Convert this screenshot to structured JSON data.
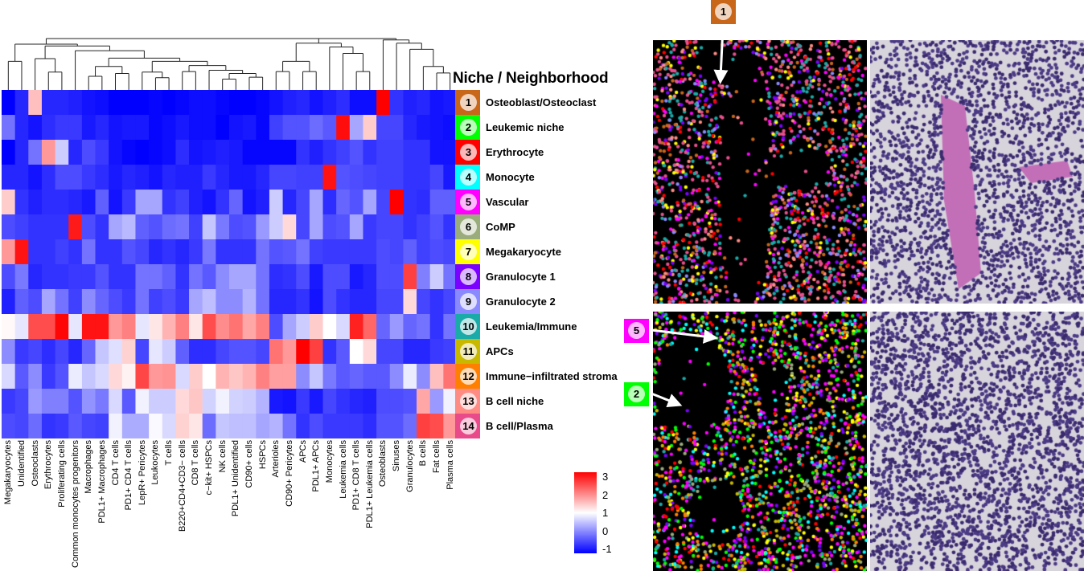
{
  "legend_title": "Niche / Neighborhood",
  "niches": [
    {
      "num": "1",
      "label": "Osteoblast/Osteoclast",
      "color": "#c8661a"
    },
    {
      "num": "2",
      "label": "Leukemic niche",
      "color": "#00ff00"
    },
    {
      "num": "3",
      "label": "Erythrocyte",
      "color": "#ff0000"
    },
    {
      "num": "4",
      "label": "Monocyte",
      "color": "#00ffff"
    },
    {
      "num": "5",
      "label": "Vascular",
      "color": "#ff00ff"
    },
    {
      "num": "6",
      "label": "CoMP",
      "color": "#9aab7c"
    },
    {
      "num": "7",
      "label": "Megakaryocyte",
      "color": "#ffff00"
    },
    {
      "num": "8",
      "label": "Granulocyte 1",
      "color": "#7a00ff"
    },
    {
      "num": "9",
      "label": "Granulocyte 2",
      "color": "#8a8aff"
    },
    {
      "num": "10",
      "label": "Leukemia/Immune",
      "color": "#1aaaa8"
    },
    {
      "num": "11",
      "label": "APCs",
      "color": "#c8b800"
    },
    {
      "num": "12",
      "label": "Immune−infiltrated stroma",
      "color": "#ff8000"
    },
    {
      "num": "13",
      "label": "B cell niche",
      "color": "#ff8c84"
    },
    {
      "num": "14",
      "label": "B cell/Plasma",
      "color": "#e84a8a"
    }
  ],
  "callouts": [
    {
      "num": "1",
      "color": "#c8661a"
    },
    {
      "num": "5",
      "color": "#ff00ff"
    },
    {
      "num": "2",
      "color": "#00ff00"
    }
  ],
  "chart_data": {
    "type": "heatmap",
    "x_categories": [
      "Megakaryocytes",
      "Unidentified",
      "Osteoclasts",
      "Erythrocytes",
      "Proliferating cells",
      "Common monocytes progenitors",
      "Macrophages",
      "PDL1+ Macrophages",
      "CD4 T cells",
      "PD1+ CD4 T cells",
      "LepR+ Pericytes",
      "Leukocytes",
      "T cells",
      "B220+CD4+CD3− cells",
      "CD8 T cells",
      "c−kit+ HSPCs",
      "NK cells",
      "PDL1+ Unidentified",
      "CD90+ cells",
      "HSPCs",
      "Arterioles",
      "CD90+ Pericytes",
      "APCs",
      "PDL1+ APCs",
      "Monocytes",
      "Leukemia cells",
      "PD1+ CD8 T cells",
      "PDL1+ Leukemia cells",
      "Osteoblasts",
      "Sinuses",
      "Granulocytes",
      "B cells",
      "Fat cells",
      "Plasma cells"
    ],
    "y_categories": [
      "Osteoblast/Osteoclast",
      "Leukemic niche",
      "Erythrocyte",
      "Monocyte",
      "Vascular",
      "CoMP",
      "Megakaryocyte",
      "Granulocyte 1",
      "Granulocyte 2",
      "Leukemia/Immune",
      "APCs",
      "Immune−infiltrated stroma",
      "B cell niche",
      "B cell/Plasma"
    ],
    "values": [
      [
        -1,
        -0.7,
        1.5,
        -0.7,
        -0.7,
        -0.75,
        -0.85,
        -0.9,
        -1,
        -1,
        -1,
        -0.95,
        -1,
        -0.95,
        -0.9,
        -0.9,
        -0.95,
        -1,
        -1,
        -0.95,
        -0.85,
        -0.75,
        -0.7,
        -0.85,
        -0.75,
        -0.65,
        -0.9,
        -0.9,
        3,
        -0.6,
        -0.75,
        -0.7,
        -0.85,
        -0.8
      ],
      [
        -0.1,
        -0.7,
        -0.85,
        -0.65,
        -0.55,
        -0.55,
        -0.8,
        -0.7,
        -0.85,
        -0.8,
        -0.8,
        -0.95,
        -0.9,
        -0.8,
        -0.9,
        -0.9,
        -1,
        -0.85,
        -0.8,
        -0.95,
        -0.5,
        -0.35,
        -0.35,
        -0.15,
        -0.3,
        2.9,
        0.3,
        1.4,
        -0.45,
        -0.45,
        -0.7,
        -0.8,
        -0.85,
        -0.9
      ],
      [
        -1,
        -0.7,
        -0.1,
        1.8,
        0.6,
        -0.7,
        -0.4,
        -0.55,
        -0.85,
        -0.95,
        -1,
        -0.95,
        -0.9,
        -0.65,
        -0.85,
        -0.8,
        -0.75,
        -0.8,
        -0.95,
        -0.95,
        -0.95,
        -0.95,
        -0.6,
        -0.75,
        -0.6,
        -0.5,
        -0.35,
        -0.6,
        -0.5,
        -0.5,
        -0.6,
        -0.6,
        -0.85,
        -0.85
      ],
      [
        -0.7,
        -0.7,
        -0.85,
        -0.65,
        -0.4,
        -0.4,
        -0.55,
        -0.65,
        -0.8,
        -0.7,
        -0.75,
        -0.85,
        -0.7,
        -0.75,
        -0.75,
        -0.55,
        -0.7,
        -0.8,
        -0.8,
        -0.7,
        -0.45,
        -0.45,
        -0.5,
        -0.5,
        2.85,
        -0.35,
        -0.4,
        -0.45,
        -0.5,
        -0.5,
        -0.6,
        -0.6,
        -0.45,
        -0.8
      ],
      [
        1.4,
        -0.6,
        -0.75,
        -0.65,
        -0.65,
        -0.7,
        -0.8,
        -0.25,
        -0.85,
        -0.55,
        0.3,
        0.3,
        -0.6,
        -0.5,
        -0.75,
        -0.85,
        -0.6,
        -0.2,
        -0.85,
        -0.75,
        0.6,
        -0.7,
        -0.45,
        0.3,
        -0.65,
        -0.2,
        -0.35,
        0.3,
        -0.45,
        3,
        -0.6,
        -0.65,
        -0.25,
        -0.25
      ],
      [
        -0.4,
        -0.5,
        -0.6,
        -0.6,
        -0.6,
        2.8,
        -0.4,
        -0.6,
        0.3,
        0.45,
        -0.25,
        -0.35,
        -0.15,
        -0.1,
        -0.5,
        0.55,
        -0.05,
        -0.4,
        -0.35,
        0.2,
        0.6,
        1.3,
        -0.45,
        0.3,
        -0.4,
        -0.35,
        0.3,
        -0.55,
        -0.45,
        -0.45,
        -0.6,
        -0.5,
        -0.35,
        -0.6
      ],
      [
        1.8,
        2.85,
        -0.6,
        -0.6,
        -0.5,
        -0.6,
        -0.1,
        -0.6,
        -0.6,
        -0.35,
        -0.45,
        -0.7,
        -0.6,
        -0.7,
        -0.55,
        -0.05,
        -0.6,
        -0.6,
        -0.6,
        -0.1,
        -0.35,
        -0.3,
        -0.1,
        -0.5,
        -0.55,
        -0.55,
        -0.55,
        -0.55,
        -0.4,
        -0.45,
        -0.25,
        -0.5,
        -0.4,
        -0.45
      ],
      [
        -0.4,
        -0.05,
        -0.7,
        -0.6,
        -0.6,
        -0.55,
        -0.55,
        -0.35,
        -0.6,
        -0.6,
        -0.1,
        -0.1,
        -0.25,
        -0.6,
        -0.1,
        -0.3,
        0.1,
        0.3,
        0.3,
        -0.1,
        -0.65,
        -0.6,
        -0.4,
        -0.8,
        -0.4,
        -0.4,
        -0.8,
        -0.7,
        -0.4,
        -0.4,
        2.5,
        0,
        0.6,
        -0.1
      ],
      [
        -0.75,
        -0.25,
        -0.4,
        0.3,
        -0.1,
        -0.5,
        0.1,
        -0.2,
        -0.4,
        -0.55,
        -0.1,
        -0.5,
        -0.4,
        -0.55,
        0.3,
        0.5,
        0.1,
        0.1,
        0.4,
        -0.1,
        -0.7,
        -0.7,
        -0.6,
        -0.85,
        -0.4,
        -0.6,
        -0.7,
        -0.7,
        -0.45,
        -0.45,
        1.3,
        -0.45,
        -0.6,
        -0.45
      ],
      [
        1.05,
        0.8,
        2.4,
        2.4,
        2.95,
        0.8,
        2.85,
        2.85,
        1.8,
        2,
        0.8,
        1.2,
        1.6,
        2,
        1.2,
        2.4,
        1.9,
        2.1,
        1.7,
        2,
        -0.4,
        0.3,
        0.6,
        1.4,
        1,
        0.7,
        2.75,
        2.2,
        -0.2,
        0.2,
        -0.2,
        -0.1,
        -0.6,
        -0.1
      ],
      [
        0.1,
        -0.55,
        -0.45,
        -0.65,
        -0.45,
        -0.7,
        -0.2,
        0.55,
        0.75,
        1.35,
        -0.45,
        0.8,
        0.6,
        -0.25,
        -0.65,
        -0.65,
        -0.45,
        -0.35,
        -0.35,
        -0.45,
        2.1,
        1.8,
        3,
        2.5,
        -0.6,
        -0.3,
        1,
        1.3,
        -0.45,
        -0.45,
        -0.7,
        -0.7,
        -0.55,
        -0.5
      ],
      [
        0.7,
        -0.3,
        0.1,
        -0.55,
        -0.35,
        0.85,
        0.55,
        0.7,
        1.3,
        1.1,
        2.45,
        1.8,
        1.85,
        0.7,
        1.4,
        1,
        1.6,
        1.45,
        1.6,
        2,
        1.75,
        1.75,
        0.1,
        0.55,
        -0.05,
        -0.3,
        -0.2,
        -0.3,
        -0.3,
        0.1,
        0.85,
        0.1,
        1.5,
        2.1
      ],
      [
        -0.55,
        -0.45,
        0.2,
        0,
        0,
        -0.35,
        0.15,
        -0.05,
        0.7,
        -0.3,
        0.9,
        0.6,
        0.6,
        1.3,
        1.45,
        0.65,
        0.9,
        0.65,
        0.6,
        0.4,
        -0.8,
        -0.85,
        -0.55,
        -0.8,
        -0.45,
        -0.6,
        -0.7,
        -0.75,
        -0.4,
        -0.4,
        -0.35,
        1.7,
        0.2,
        0.9
      ],
      [
        -0.4,
        -0.45,
        -0.15,
        -0.6,
        -0.55,
        -0.3,
        -0.45,
        -0.5,
        0.9,
        0.35,
        0.35,
        0.95,
        0.7,
        1.35,
        1.2,
        -0.15,
        0.55,
        0.5,
        0.5,
        0.3,
        0.4,
        -0.1,
        -0.6,
        -0.4,
        -0.55,
        -0.55,
        -0.55,
        -0.65,
        -0.35,
        -0.35,
        -0.15,
        2.5,
        2.4,
        1.8
      ]
    ],
    "color_scale": {
      "min": -1,
      "mid": 1,
      "max": 3,
      "low_color": "#0000ff",
      "mid_color": "#ffffff",
      "high_color": "#ff0000"
    },
    "colorbar_ticks": [
      "3",
      "2",
      "1",
      "0",
      "-1"
    ],
    "column_dendrogram": true
  }
}
